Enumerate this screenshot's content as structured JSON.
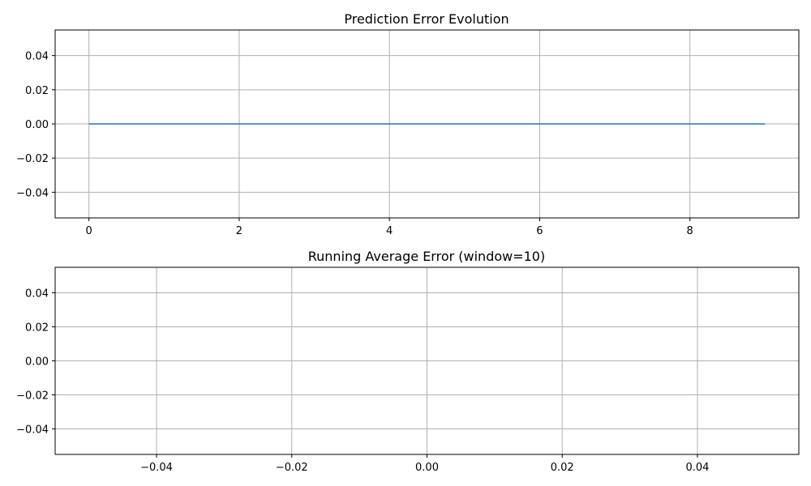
{
  "chart_data": [
    {
      "type": "line",
      "title": "Prediction Error Evolution",
      "xlabel": "",
      "ylabel": "",
      "xlim": [
        -0.45,
        9.45
      ],
      "ylim": [
        -0.055,
        0.055
      ],
      "xticks": [
        0,
        2,
        4,
        6,
        8
      ],
      "xtick_labels": [
        "0",
        "2",
        "4",
        "6",
        "8"
      ],
      "yticks": [
        -0.04,
        -0.02,
        0.0,
        0.02,
        0.04
      ],
      "ytick_labels": [
        "−0.04",
        "−0.02",
        "0.00",
        "0.02",
        "0.04"
      ],
      "grid": true,
      "series": [
        {
          "color": "#1f77b4",
          "x": [
            0,
            1,
            2,
            3,
            4,
            5,
            6,
            7,
            8,
            9
          ],
          "y": [
            0,
            0,
            0,
            0,
            0,
            0,
            0,
            0,
            0,
            0
          ]
        }
      ]
    },
    {
      "type": "line",
      "title": "Running Average Error (window=10)",
      "xlabel": "",
      "ylabel": "",
      "xlim": [
        -0.055,
        0.055
      ],
      "ylim": [
        -0.055,
        0.055
      ],
      "xticks": [
        -0.04,
        -0.02,
        0.0,
        0.02,
        0.04
      ],
      "xtick_labels": [
        "−0.04",
        "−0.02",
        "0.00",
        "0.02",
        "0.04"
      ],
      "yticks": [
        -0.04,
        -0.02,
        0.0,
        0.02,
        0.04
      ],
      "ytick_labels": [
        "−0.04",
        "−0.02",
        "0.00",
        "0.02",
        "0.04"
      ],
      "grid": true,
      "series": []
    }
  ]
}
